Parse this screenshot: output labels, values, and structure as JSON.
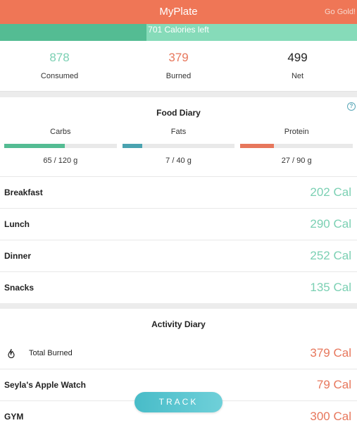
{
  "header": {
    "title": "MyPlate",
    "go_gold": "Go Gold!"
  },
  "calories": {
    "left_text": "701 Calories left",
    "progress_fraction": 0.41
  },
  "summary": [
    {
      "value": "878",
      "label": "Consumed",
      "color": "#7bd0b3"
    },
    {
      "value": "379",
      "label": "Burned",
      "color": "#e7775c"
    },
    {
      "value": "499",
      "label": "Net",
      "color": "#222222"
    }
  ],
  "food_diary": {
    "title": "Food Diary",
    "help_icon": "help-icon",
    "macros": [
      {
        "name": "Carbs",
        "value": "65 / 120 g",
        "fraction": 0.54,
        "color": "#54bc93"
      },
      {
        "name": "Fats",
        "value": "7 / 40 g",
        "fraction": 0.175,
        "color": "#4aa3b0"
      },
      {
        "name": "Protein",
        "value": "27 / 90 g",
        "fraction": 0.3,
        "color": "#e7775c"
      }
    ],
    "meals": [
      {
        "label": "Breakfast",
        "value": "202 Cal"
      },
      {
        "label": "Lunch",
        "value": "290 Cal"
      },
      {
        "label": "Dinner",
        "value": "252 Cal"
      },
      {
        "label": "Snacks",
        "value": "135 Cal"
      }
    ]
  },
  "activity_diary": {
    "title": "Activity Diary",
    "total_burned": {
      "label": "Total Burned",
      "value": "379 Cal",
      "icon": "flame-icon"
    },
    "items": [
      {
        "label": "Seyla's Apple Watch",
        "value": "79 Cal"
      },
      {
        "label": "GYM",
        "value": "300 Cal"
      }
    ]
  },
  "track_button": "TRACK",
  "colors": {
    "accent": "#ef7656",
    "green": "#7bd0b3",
    "teal": "#48bcc8"
  }
}
